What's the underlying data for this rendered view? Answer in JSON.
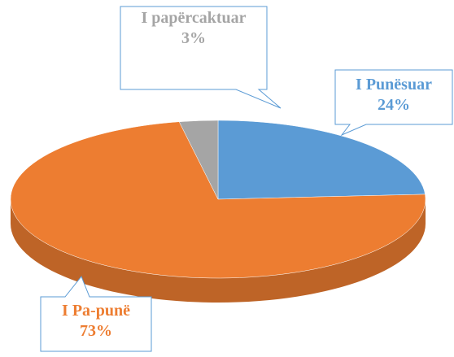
{
  "chart_data": {
    "type": "pie",
    "categories": [
      "I Punësuar",
      "I Pa-punë",
      "I papërcaktuar"
    ],
    "values": [
      24,
      73,
      3
    ],
    "value_labels": [
      "24%",
      "73%",
      "3%"
    ],
    "colors": [
      "#5b9bd5",
      "#ed7d31",
      "#a5a5a5"
    ]
  }
}
